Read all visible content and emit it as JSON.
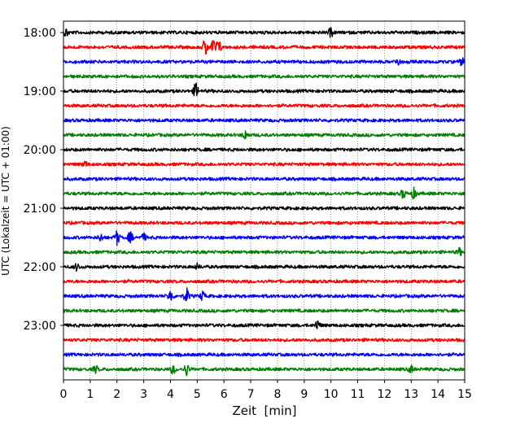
{
  "chart_data": {
    "type": "line",
    "xlabel": "Zeit  [min]",
    "ylabel": "UTC (Lokalzeit = UTC + 01:00)",
    "xlim": [
      0,
      15
    ],
    "x_ticks": [
      "0",
      "1",
      "2",
      "3",
      "4",
      "5",
      "6",
      "7",
      "8",
      "9",
      "10",
      "11",
      "12",
      "13",
      "14",
      "15"
    ],
    "y_ticks": [
      "18:00",
      "19:00",
      "20:00",
      "21:00",
      "22:00",
      "23:00"
    ],
    "row_start": "18:00",
    "row_interval_min": 15,
    "row_colors": [
      "#000000",
      "#ff0000",
      "#0000ff",
      "#008000"
    ],
    "grid": "vertical dotted lines at each minute",
    "traces": [
      {
        "start": "18:00",
        "color": "#000000",
        "events": [
          {
            "t": 0.1,
            "amp": 5
          },
          {
            "t": 10.0,
            "amp": 5
          }
        ]
      },
      {
        "start": "18:15",
        "color": "#ff0000",
        "events": [
          {
            "t": 5.3,
            "amp": 11
          },
          {
            "t": 5.6,
            "amp": 9
          },
          {
            "t": 5.8,
            "amp": 8
          }
        ]
      },
      {
        "start": "18:30",
        "color": "#0000ff",
        "events": [
          {
            "t": 12.5,
            "amp": 4
          },
          {
            "t": 14.9,
            "amp": 4
          }
        ]
      },
      {
        "start": "18:45",
        "color": "#008000",
        "events": []
      },
      {
        "start": "19:00",
        "color": "#000000",
        "events": [
          {
            "t": 4.95,
            "amp": 9
          }
        ]
      },
      {
        "start": "19:15",
        "color": "#ff0000",
        "events": []
      },
      {
        "start": "19:30",
        "color": "#0000ff",
        "events": []
      },
      {
        "start": "19:45",
        "color": "#008000",
        "events": [
          {
            "t": 6.8,
            "amp": 5
          }
        ]
      },
      {
        "start": "20:00",
        "color": "#000000",
        "events": []
      },
      {
        "start": "20:15",
        "color": "#ff0000",
        "events": [
          {
            "t": 0.8,
            "amp": 3
          }
        ]
      },
      {
        "start": "20:30",
        "color": "#0000ff",
        "events": []
      },
      {
        "start": "20:45",
        "color": "#008000",
        "events": [
          {
            "t": 12.7,
            "amp": 5
          },
          {
            "t": 13.1,
            "amp": 6
          }
        ]
      },
      {
        "start": "21:00",
        "color": "#000000",
        "events": []
      },
      {
        "start": "21:15",
        "color": "#ff0000",
        "events": []
      },
      {
        "start": "21:30",
        "color": "#0000ff",
        "events": [
          {
            "t": 1.4,
            "amp": 4
          },
          {
            "t": 2.0,
            "amp": 8
          },
          {
            "t": 2.5,
            "amp": 6
          },
          {
            "t": 3.0,
            "amp": 4
          }
        ]
      },
      {
        "start": "21:45",
        "color": "#008000",
        "events": [
          {
            "t": 14.8,
            "amp": 4
          }
        ]
      },
      {
        "start": "22:00",
        "color": "#000000",
        "events": [
          {
            "t": 0.5,
            "amp": 4
          },
          {
            "t": 5.0,
            "amp": 3
          }
        ]
      },
      {
        "start": "22:15",
        "color": "#ff0000",
        "events": []
      },
      {
        "start": "22:30",
        "color": "#0000ff",
        "events": [
          {
            "t": 4.0,
            "amp": 7
          },
          {
            "t": 4.6,
            "amp": 9
          },
          {
            "t": 5.2,
            "amp": 5
          }
        ]
      },
      {
        "start": "22:45",
        "color": "#008000",
        "events": []
      },
      {
        "start": "23:00",
        "color": "#000000",
        "events": [
          {
            "t": 9.5,
            "amp": 6
          }
        ]
      },
      {
        "start": "23:15",
        "color": "#ff0000",
        "events": []
      },
      {
        "start": "23:30",
        "color": "#0000ff",
        "events": []
      },
      {
        "start": "23:45",
        "color": "#008000",
        "events": [
          {
            "t": 1.2,
            "amp": 4
          },
          {
            "t": 4.1,
            "amp": 5
          },
          {
            "t": 4.6,
            "amp": 7
          },
          {
            "t": 13.0,
            "amp": 4
          }
        ]
      }
    ]
  }
}
